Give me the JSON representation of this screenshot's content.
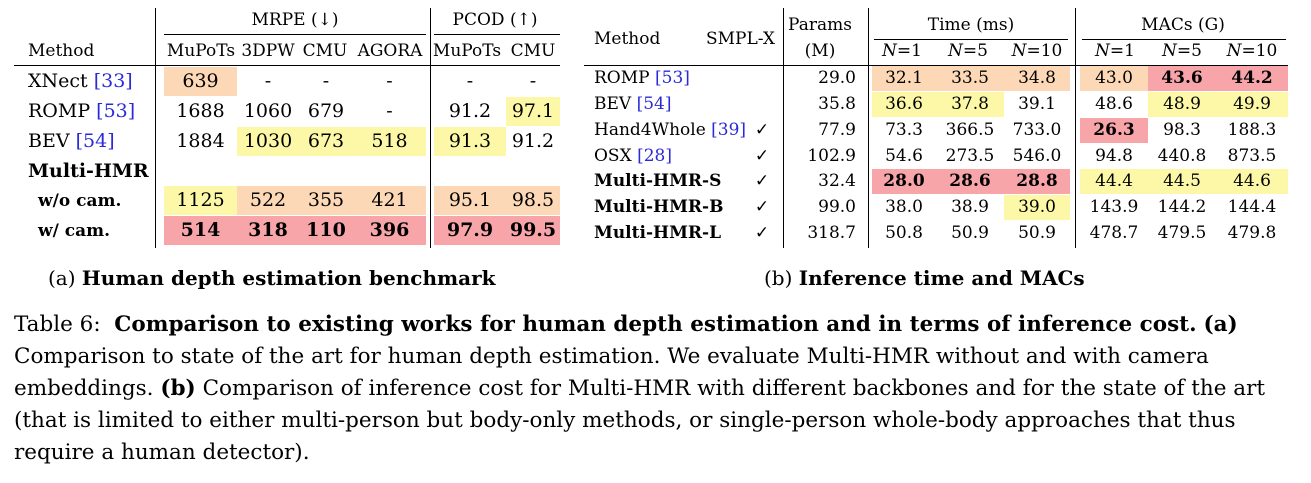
{
  "table_a": {
    "group_mrpe": "MRPE (↓)",
    "group_pcod": "PCOD (↑)",
    "col_method": "Method",
    "columns": [
      "MuPoTs",
      "3DPW",
      "CMU",
      "AGORA",
      "MuPoTs",
      "CMU"
    ],
    "rows": [
      {
        "method": "XNect",
        "ref": "[33]",
        "bold": false,
        "indent": false,
        "cells": [
          "639",
          "-",
          "-",
          "-",
          "-",
          "-"
        ],
        "hl": [
          "peach",
          "",
          "",
          "",
          "",
          ""
        ]
      },
      {
        "method": "ROMP",
        "ref": "[53]",
        "bold": false,
        "indent": false,
        "cells": [
          "1688",
          "1060",
          "679",
          "-",
          "91.2",
          "97.1"
        ],
        "hl": [
          "",
          "",
          "",
          "",
          "",
          "yellow"
        ]
      },
      {
        "method": "BEV",
        "ref": "[54]",
        "bold": false,
        "indent": false,
        "cells": [
          "1884",
          "1030",
          "673",
          "518",
          "91.3",
          "91.2"
        ],
        "hl": [
          "",
          "yellow",
          "yellow",
          "yellow",
          "yellow",
          ""
        ]
      },
      {
        "method": "Multi-HMR",
        "ref": "",
        "bold": true,
        "indent": false,
        "cells": [
          "",
          "",
          "",
          "",
          "",
          ""
        ],
        "hl": [
          "",
          "",
          "",
          "",
          "",
          ""
        ]
      },
      {
        "method": "w/o cam.",
        "ref": "",
        "bold": true,
        "indent": true,
        "cells": [
          "1125",
          "522",
          "355",
          "421",
          "95.1",
          "98.5"
        ],
        "hl": [
          "yellow",
          "peach",
          "peach",
          "peach",
          "peach",
          "peach"
        ]
      },
      {
        "method": "w/ cam.",
        "ref": "",
        "bold": true,
        "indent": true,
        "cells": [
          "514",
          "318",
          "110",
          "396",
          "97.9",
          "99.5"
        ],
        "hl": [
          "red",
          "red",
          "red",
          "red",
          "red",
          "red"
        ],
        "bold_cells": true
      }
    ],
    "caption_prefix": "(a)",
    "caption": "Human depth estimation benchmark"
  },
  "table_b": {
    "col_method": "Method",
    "col_smplx": "SMPL-X",
    "params_line1": "Params",
    "params_line2": "(M)",
    "group_time": "Time (ms)",
    "group_macs": "MACs (G)",
    "sub": [
      "N=1",
      "N=5",
      "N=10",
      "N=1",
      "N=5",
      "N=10"
    ],
    "rows": [
      {
        "method": "ROMP",
        "ref": "[53]",
        "bold": false,
        "smplx": "",
        "params": "29.0",
        "cells": [
          "32.1",
          "33.5",
          "34.8",
          "43.0",
          "43.6",
          "44.2"
        ],
        "hl": [
          "peach",
          "peach",
          "peach",
          "peach",
          "red",
          "red"
        ],
        "bold_idx": [
          4,
          5
        ]
      },
      {
        "method": "BEV",
        "ref": "[54]",
        "bold": false,
        "smplx": "",
        "params": "35.8",
        "cells": [
          "36.6",
          "37.8",
          "39.1",
          "48.6",
          "48.9",
          "49.9"
        ],
        "hl": [
          "yellow",
          "yellow",
          "",
          "",
          "yellow",
          "yellow"
        ],
        "bold_idx": []
      },
      {
        "method": "Hand4Whole",
        "ref": "[39]",
        "bold": false,
        "smplx": "✓",
        "params": "77.9",
        "cells": [
          "73.3",
          "366.5",
          "733.0",
          "26.3",
          "98.3",
          "188.3"
        ],
        "hl": [
          "",
          "",
          "",
          "red",
          "",
          ""
        ],
        "bold_idx": [
          3
        ]
      },
      {
        "method": "OSX",
        "ref": "[28]",
        "bold": false,
        "smplx": "✓",
        "params": "102.9",
        "cells": [
          "54.6",
          "273.5",
          "546.0",
          "94.8",
          "440.8",
          "873.5"
        ],
        "hl": [
          "",
          "",
          "",
          "",
          "",
          ""
        ],
        "bold_idx": []
      },
      {
        "method": "Multi-HMR-S",
        "ref": "",
        "bold": true,
        "smplx": "✓",
        "params": "32.4",
        "cells": [
          "28.0",
          "28.6",
          "28.8",
          "44.4",
          "44.5",
          "44.6"
        ],
        "hl": [
          "red",
          "red",
          "red",
          "yellow",
          "yellow",
          "yellow"
        ],
        "bold_idx": [
          0,
          1,
          2
        ]
      },
      {
        "method": "Multi-HMR-B",
        "ref": "",
        "bold": true,
        "smplx": "✓",
        "params": "99.0",
        "cells": [
          "38.0",
          "38.9",
          "39.0",
          "143.9",
          "144.2",
          "144.4"
        ],
        "hl": [
          "",
          "",
          "yellow",
          "",
          "",
          ""
        ],
        "bold_idx": []
      },
      {
        "method": "Multi-HMR-L",
        "ref": "",
        "bold": true,
        "smplx": "✓",
        "params": "318.7",
        "cells": [
          "50.8",
          "50.9",
          "50.9",
          "478.7",
          "479.5",
          "479.8"
        ],
        "hl": [
          "",
          "",
          "",
          "",
          "",
          ""
        ],
        "bold_idx": []
      }
    ],
    "caption_prefix": "(b)",
    "caption": "Inference time and MACs"
  },
  "main_caption": {
    "label": "Table 6:",
    "title": "Comparison to existing works for human depth estimation and in terms of inference cost.",
    "a_tag": "(a)",
    "a_text": "Comparison to state of the art for human depth estimation. We evaluate Multi-HMR without and with camera embeddings.",
    "b_tag": "(b)",
    "b_text": "Comparison of inference cost for Multi-HMR with different backbones and for the state of the art (that is limited to either multi-person but body-only methods, or single-person whole-body approaches that thus require a human detector)."
  },
  "colors": {
    "peach": "#fcd8b6",
    "yellow": "#fcf8a8",
    "red": "#f8a5aa",
    "link": "#2b2bd6"
  }
}
